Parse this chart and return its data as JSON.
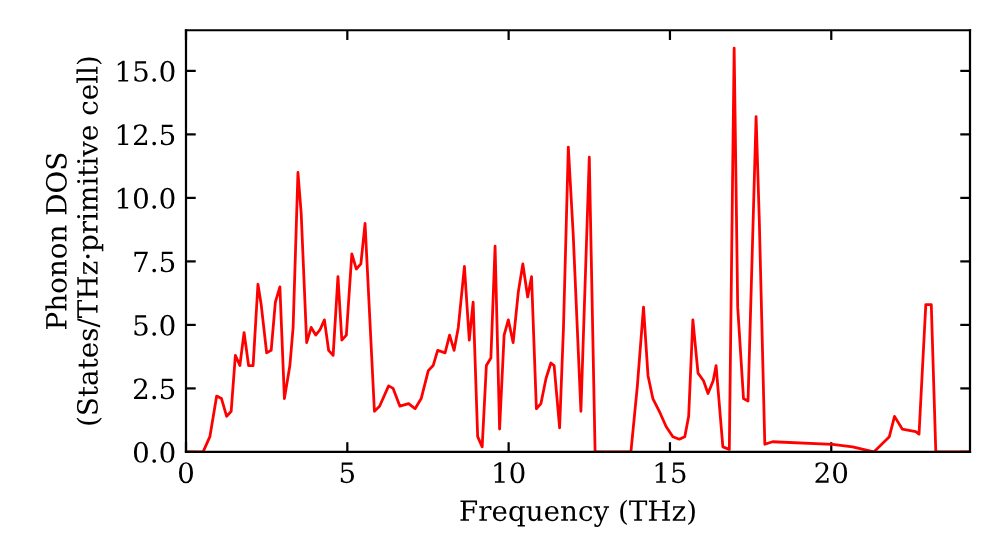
{
  "chart_data": {
    "type": "line",
    "xlabel": "Frequency (THz)",
    "ylabel": "Phonon DOS\n(States/THz·primitive cell)",
    "x": [
      0,
      0.53,
      0.74,
      0.95,
      1.1,
      1.26,
      1.4,
      1.53,
      1.67,
      1.8,
      1.94,
      2.08,
      2.23,
      2.33,
      2.5,
      2.64,
      2.77,
      2.91,
      3.05,
      3.22,
      3.32,
      3.47,
      3.57,
      3.74,
      3.88,
      4.02,
      4.15,
      4.29,
      4.42,
      4.56,
      4.71,
      4.83,
      4.97,
      5.14,
      5.28,
      5.42,
      5.55,
      5.84,
      6.0,
      6.28,
      6.42,
      6.63,
      6.9,
      7.1,
      7.29,
      7.51,
      7.66,
      7.8,
      8.03,
      8.17,
      8.31,
      8.44,
      8.63,
      8.78,
      8.9,
      9.04,
      9.18,
      9.31,
      9.45,
      9.58,
      9.72,
      9.86,
      9.99,
      10.14,
      10.3,
      10.44,
      10.59,
      10.71,
      10.86,
      11.0,
      11.16,
      11.31,
      11.41,
      11.58,
      11.7,
      11.85,
      12.0,
      12.24,
      12.5,
      12.68,
      13.79,
      13.99,
      14.18,
      14.32,
      14.47,
      14.67,
      14.88,
      15.09,
      15.29,
      15.46,
      15.58,
      15.71,
      15.87,
      16.04,
      16.18,
      16.34,
      16.43,
      16.64,
      16.84,
      16.99,
      17.1,
      17.28,
      17.42,
      17.67,
      17.77,
      17.94,
      18.18,
      20.04,
      20.66,
      21.32,
      21.8,
      21.96,
      22.2,
      22.62,
      22.72,
      22.93,
      23.1,
      23.24,
      24.27
    ],
    "series": [
      {
        "color": "#ff0000",
        "values": [
          0,
          0,
          0.6,
          2.2,
          2.1,
          1.4,
          1.6,
          3.8,
          3.4,
          4.7,
          3.4,
          3.4,
          6.6,
          5.8,
          3.9,
          4.0,
          5.9,
          6.5,
          2.1,
          3.4,
          4.9,
          11.0,
          9.4,
          4.3,
          4.9,
          4.6,
          4.8,
          5.2,
          4.0,
          3.8,
          6.9,
          4.4,
          4.6,
          7.8,
          7.2,
          7.4,
          9.0,
          1.6,
          1.8,
          2.6,
          2.5,
          1.8,
          1.9,
          1.7,
          2.1,
          3.2,
          3.4,
          4.0,
          3.9,
          4.6,
          4.0,
          4.9,
          7.3,
          4.4,
          5.9,
          0.6,
          0.2,
          3.4,
          3.7,
          8.1,
          0.9,
          4.6,
          5.2,
          4.3,
          6.3,
          7.4,
          6.1,
          6.9,
          1.7,
          1.9,
          2.9,
          3.5,
          3.4,
          0.95,
          4.9,
          12.0,
          8.6,
          1.6,
          11.6,
          0,
          0,
          2.6,
          5.7,
          3.0,
          2.1,
          1.6,
          1.0,
          0.6,
          0.5,
          0.6,
          1.4,
          5.2,
          3.1,
          2.8,
          2.3,
          2.8,
          3.4,
          0.2,
          0.1,
          15.9,
          5.7,
          2.1,
          2.0,
          13.2,
          9.1,
          0.3,
          0.4,
          0.3,
          0.2,
          0,
          0.6,
          1.4,
          0.9,
          0.8,
          0.7,
          5.8,
          5.8,
          0,
          0
        ]
      }
    ],
    "xlim": [
      0,
      24.3
    ],
    "ylim": [
      0,
      16.6
    ],
    "xticks": [
      0,
      5,
      10,
      15,
      20
    ],
    "yticks": [
      {
        "value": 0,
        "label": "0.0"
      },
      {
        "value": 2.5,
        "label": "2.5"
      },
      {
        "value": 5,
        "label": "5.0"
      },
      {
        "value": 7.5,
        "label": "7.5"
      },
      {
        "value": 10,
        "label": "10.0"
      },
      {
        "value": 12.5,
        "label": "12.5"
      },
      {
        "value": 15,
        "label": "15.0"
      }
    ],
    "grid": false,
    "legend": false,
    "line_style": "solid"
  }
}
